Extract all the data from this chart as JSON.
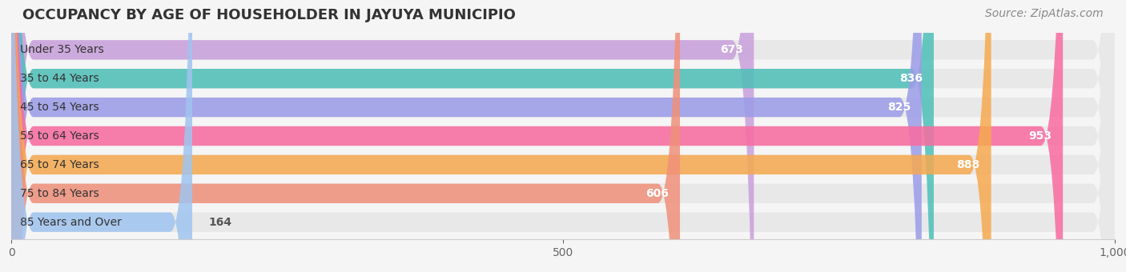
{
  "title": "OCCUPANCY BY AGE OF HOUSEHOLDER IN JAYUYA MUNICIPIO",
  "source": "Source: ZipAtlas.com",
  "categories": [
    "Under 35 Years",
    "35 to 44 Years",
    "45 to 54 Years",
    "55 to 64 Years",
    "65 to 74 Years",
    "75 to 84 Years",
    "85 Years and Over"
  ],
  "values": [
    673,
    836,
    825,
    953,
    888,
    606,
    164
  ],
  "bar_colors": [
    "#c9a0dc",
    "#4dbfb8",
    "#9b9ce8",
    "#f96ba0",
    "#f5a94e",
    "#f0907a",
    "#a0c4f0"
  ],
  "xlim": [
    0,
    1000
  ],
  "xticks": [
    0,
    500,
    1000
  ],
  "background_color": "#f5f5f5",
  "bar_background_color": "#e8e8e8",
  "title_fontsize": 13,
  "label_fontsize": 10,
  "value_fontsize": 10,
  "source_fontsize": 10
}
